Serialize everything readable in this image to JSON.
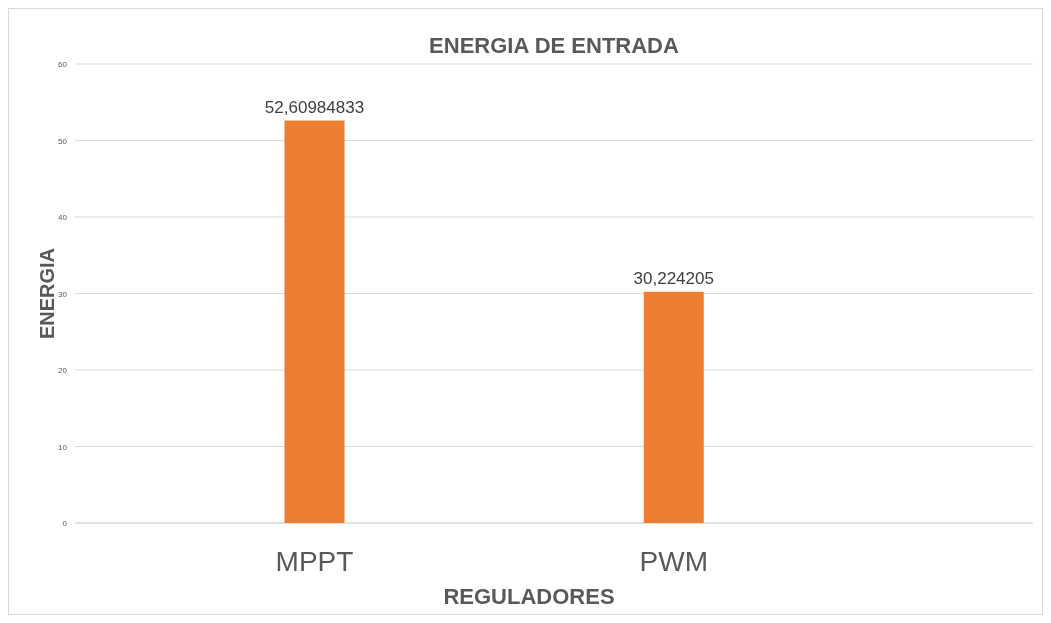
{
  "chart_data": {
    "type": "bar",
    "title": "ENERGIA DE ENTRADA",
    "xlabel": "REGULADORES",
    "ylabel": "ENERGIA",
    "categories": [
      "MPPT",
      "PWM"
    ],
    "values": [
      52.60984833,
      30.224205
    ],
    "value_labels": [
      "52,60984833",
      "30,224205"
    ],
    "color": "#ed7d31",
    "ylim": [
      0,
      60
    ],
    "yticks": [
      0,
      10,
      20,
      30,
      40,
      50,
      60
    ],
    "grid": "y"
  }
}
